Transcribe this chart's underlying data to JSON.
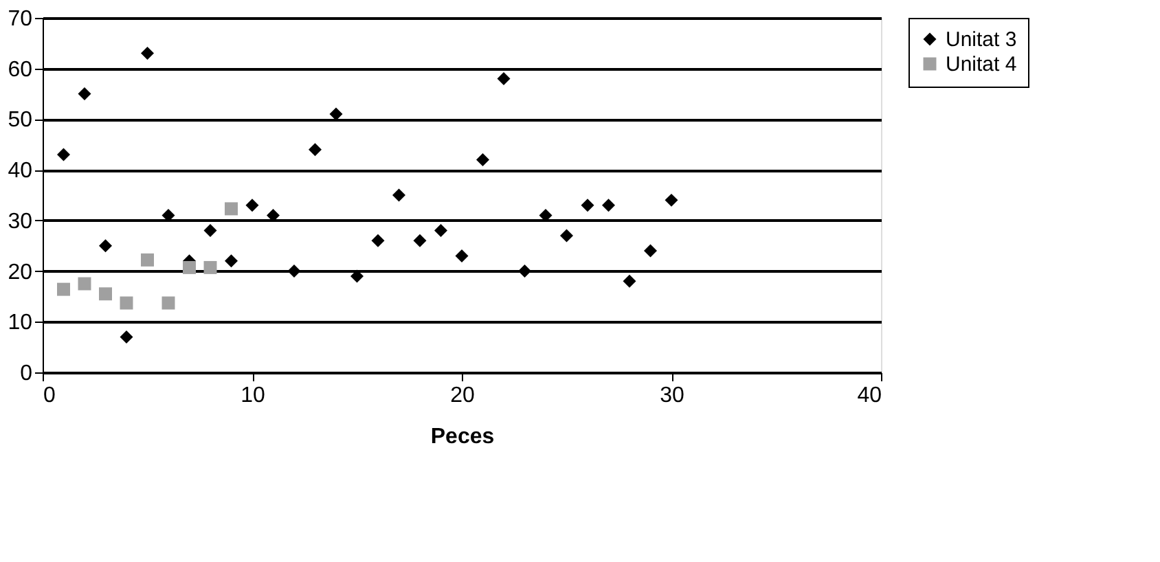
{
  "chart_data": {
    "type": "scatter",
    "xlabel": "Peces",
    "xlim": [
      0,
      40
    ],
    "xticks": [
      0,
      10,
      20,
      30,
      40
    ],
    "ylim": [
      0,
      70
    ],
    "yticks": [
      0,
      10,
      20,
      30,
      40,
      50,
      60,
      70
    ],
    "grid": "y",
    "legend": "right",
    "series": [
      {
        "name": "Unitat 3",
        "color": "#000000",
        "marker": "diamond",
        "x": [
          1,
          2,
          3,
          4,
          5,
          6,
          7,
          8,
          9,
          10,
          11,
          12,
          13,
          14,
          15,
          16,
          17,
          18,
          19,
          20,
          21,
          22,
          23,
          24,
          25,
          26,
          27,
          28,
          29,
          30
        ],
        "values": [
          43,
          55,
          25,
          7,
          63,
          31,
          22,
          28,
          22,
          33,
          31,
          20,
          44,
          51,
          19,
          26,
          35,
          26,
          28,
          23,
          42,
          58,
          20,
          31,
          27,
          33,
          33,
          18,
          24,
          34
        ]
      },
      {
        "name": "Unitat 4",
        "color": "#a0a0a0",
        "marker": "square",
        "x": [
          1,
          2,
          3,
          4,
          5,
          6,
          7,
          8,
          9
        ],
        "values": [
          16.4,
          17.5,
          15.5,
          13.7,
          22.2,
          13.7,
          20.7,
          20.7,
          32.3
        ]
      }
    ]
  }
}
